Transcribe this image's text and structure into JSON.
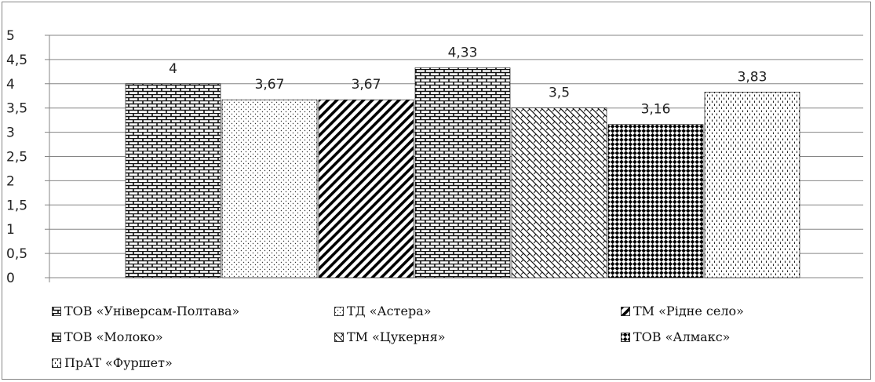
{
  "chart_data": {
    "type": "bar",
    "title": "",
    "xlabel": "",
    "ylabel": "",
    "ylim": [
      0,
      5
    ],
    "y_ticks": [
      "0",
      "0,5",
      "1",
      "1,5",
      "2",
      "2,5",
      "3",
      "3,5",
      "4",
      "4,5",
      "5"
    ],
    "grid": true,
    "legend_position": "bottom",
    "series": [
      {
        "name": "ТОВ «Універсам-Полтава»",
        "value": 4.0,
        "label": "4",
        "pattern": "brick"
      },
      {
        "name": "ТД «Астера»",
        "value": 3.67,
        "label": "3,67",
        "pattern": "dots"
      },
      {
        "name": "ТМ «Рідне село»",
        "value": 3.67,
        "label": "3,67",
        "pattern": "diagonal"
      },
      {
        "name": "ТОВ  «Молоко»",
        "value": 4.33,
        "label": "4,33",
        "pattern": "brick"
      },
      {
        "name": "ТМ «Цукерня»",
        "value": 3.5,
        "label": "3,5",
        "pattern": "wave"
      },
      {
        "name": "ТОВ «Алмакс»",
        "value": 3.16,
        "label": "3,16",
        "pattern": "checker"
      },
      {
        "name": "ПрАТ «Фуршет»",
        "value": 3.83,
        "label": "3,83",
        "pattern": "dashes"
      }
    ],
    "colors": {
      "gridline": "#868686",
      "bar_ink": "#000000",
      "background": "#ffffff"
    }
  }
}
